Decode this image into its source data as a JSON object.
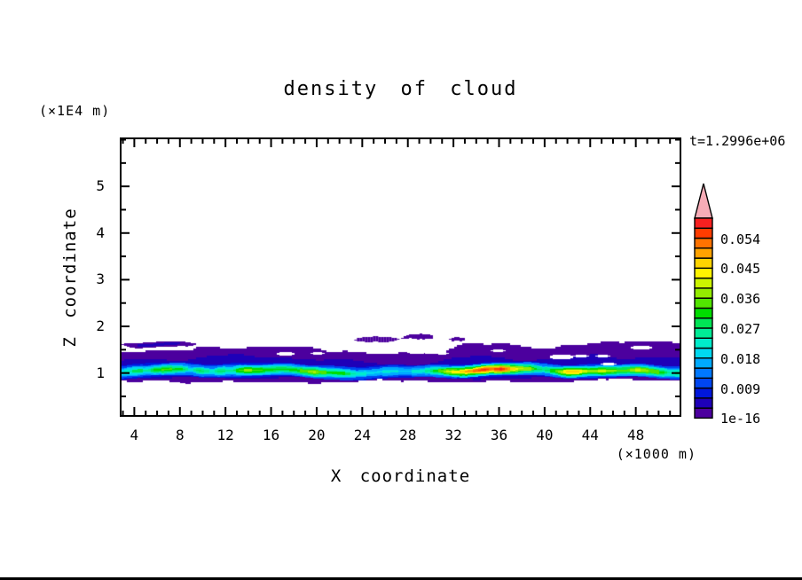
{
  "title": "density of cloud",
  "header": {
    "y_axis_units": "(×1E4 m)",
    "time_label": "t=1.2996e+06"
  },
  "axes": {
    "x": {
      "label": "X coordinate",
      "units": "(×1000 m)",
      "min": 2.88,
      "max": 51.84,
      "major_ticks": [
        4,
        8,
        12,
        16,
        20,
        24,
        28,
        32,
        36,
        40,
        44,
        48
      ],
      "minor_step": 1
    },
    "z": {
      "label": "Z coordinate",
      "units": "(×1E4 m)",
      "min": 0.1,
      "max": 6.01,
      "major_ticks": [
        1,
        2,
        3,
        4,
        5
      ],
      "minor_step": 0.5
    }
  },
  "colorbar": {
    "labels": [
      "0.054",
      "0.045",
      "0.036",
      "0.027",
      "0.018",
      "0.009",
      "1e-16"
    ],
    "label_boundaries": [
      18,
      15,
      12,
      9,
      6,
      3,
      0
    ],
    "level_step": 0.003,
    "colors_bottom_to_top": [
      "#4c009e",
      "#1e00b8",
      "#0017dc",
      "#0046f0",
      "#0078ff",
      "#00aaff",
      "#00d8f0",
      "#00eccb",
      "#00ec96",
      "#00e455",
      "#00dc00",
      "#52e400",
      "#94ec00",
      "#ccf400",
      "#fff400",
      "#ffd400",
      "#ffa200",
      "#ff7200",
      "#ff3c00",
      "#f82020"
    ],
    "overflow_color": "#f6abb6"
  },
  "chart_data": {
    "type": "filled_contour",
    "title": "density of cloud",
    "xlabel": "X coordinate (×1000 m)",
    "ylabel": "Z coordinate (×1E4 m)",
    "time_annotation": "t=1.2996e+06",
    "levels_min": 1e-16,
    "level_step": 0.003,
    "n_levels": 20,
    "xlim": [
      2.88,
      51.84
    ],
    "zlim": [
      0.1,
      6.01
    ],
    "band": {
      "top_purple": [
        [
          2.88,
          1.47
        ],
        [
          5,
          1.46
        ],
        [
          8,
          1.46
        ],
        [
          9,
          1.44
        ],
        [
          9.4,
          1.52
        ],
        [
          11,
          1.56
        ],
        [
          12.5,
          1.53
        ],
        [
          14.5,
          1.56
        ],
        [
          16.5,
          1.55
        ],
        [
          18,
          1.53
        ],
        [
          19.5,
          1.55
        ],
        [
          21,
          1.5
        ],
        [
          22.5,
          1.52
        ],
        [
          24,
          1.47
        ],
        [
          25.5,
          1.44
        ],
        [
          27,
          1.41
        ],
        [
          28.5,
          1.43
        ],
        [
          30,
          1.4
        ],
        [
          31,
          1.41
        ],
        [
          31.8,
          1.52
        ],
        [
          32.8,
          1.62
        ],
        [
          34.2,
          1.64
        ],
        [
          35.6,
          1.61
        ],
        [
          37,
          1.57
        ],
        [
          38.2,
          1.52
        ],
        [
          39.6,
          1.5
        ],
        [
          40.8,
          1.52
        ],
        [
          41.9,
          1.62
        ],
        [
          43.2,
          1.66
        ],
        [
          45,
          1.69
        ],
        [
          46.8,
          1.66
        ],
        [
          48.6,
          1.69
        ],
        [
          50.2,
          1.66
        ],
        [
          51.84,
          1.68
        ]
      ],
      "bot_purple": [
        [
          2.88,
          0.83
        ],
        [
          4.5,
          0.8
        ],
        [
          6.5,
          0.84
        ],
        [
          8.5,
          0.8
        ],
        [
          10.5,
          0.84
        ],
        [
          12.3,
          0.86
        ],
        [
          13.5,
          0.8
        ],
        [
          15.5,
          0.78
        ],
        [
          17.5,
          0.81
        ],
        [
          19.5,
          0.78
        ],
        [
          21.5,
          0.82
        ],
        [
          23.5,
          0.79
        ],
        [
          25.5,
          0.84
        ],
        [
          27.5,
          0.8
        ],
        [
          29.5,
          0.85
        ],
        [
          31.5,
          0.82
        ],
        [
          33.5,
          0.8
        ],
        [
          35.5,
          0.84
        ],
        [
          37.5,
          0.81
        ],
        [
          39.5,
          0.84
        ],
        [
          41.5,
          0.81
        ],
        [
          43.5,
          0.85
        ],
        [
          45.5,
          0.82
        ],
        [
          47.5,
          0.85
        ],
        [
          49.5,
          0.82
        ],
        [
          51.84,
          0.84
        ]
      ],
      "top_navy": [
        [
          2.88,
          1.26
        ],
        [
          4.5,
          1.29
        ],
        [
          6.5,
          1.31
        ],
        [
          8.5,
          1.27
        ],
        [
          10.5,
          1.33
        ],
        [
          12.5,
          1.36
        ],
        [
          14.5,
          1.33
        ],
        [
          16.5,
          1.37
        ],
        [
          18.5,
          1.33
        ],
        [
          20.5,
          1.3
        ],
        [
          22.5,
          1.28
        ],
        [
          24.5,
          1.24
        ],
        [
          26.5,
          1.21
        ],
        [
          28.5,
          1.19
        ],
        [
          30.5,
          1.22
        ],
        [
          32.5,
          1.3
        ],
        [
          34.5,
          1.34
        ],
        [
          36.5,
          1.3
        ],
        [
          38.5,
          1.27
        ],
        [
          40.5,
          1.3
        ],
        [
          42.5,
          1.35
        ],
        [
          44.5,
          1.38
        ],
        [
          46.5,
          1.35
        ],
        [
          48.5,
          1.38
        ],
        [
          50.5,
          1.35
        ],
        [
          51.84,
          1.36
        ]
      ],
      "bot_navy": [
        [
          2.88,
          0.92
        ],
        [
          6,
          0.9
        ],
        [
          10,
          0.92
        ],
        [
          14,
          0.89
        ],
        [
          18,
          0.91
        ],
        [
          22,
          0.89
        ],
        [
          26,
          0.92
        ],
        [
          30,
          0.9
        ],
        [
          34,
          0.88
        ],
        [
          38,
          0.9
        ],
        [
          42,
          0.89
        ],
        [
          46,
          0.92
        ],
        [
          50,
          0.9
        ],
        [
          51.84,
          0.91
        ]
      ],
      "core_center": [
        [
          2.88,
          1.03
        ],
        [
          6,
          1.05
        ],
        [
          10,
          1.04
        ],
        [
          14,
          1.06
        ],
        [
          18,
          1.05
        ],
        [
          22,
          1.03
        ],
        [
          26,
          1.02
        ],
        [
          30,
          1.04
        ],
        [
          34,
          1.05
        ],
        [
          38,
          1.06
        ],
        [
          42,
          1.05
        ],
        [
          46,
          1.06
        ],
        [
          50,
          1.04
        ],
        [
          51.84,
          1.03
        ]
      ],
      "core_peak": [
        [
          2.88,
          0.022
        ],
        [
          3.5,
          0.026
        ],
        [
          4.5,
          0.03
        ],
        [
          5.2,
          0.024
        ],
        [
          5.8,
          0.032
        ],
        [
          7,
          0.034
        ],
        [
          8.3,
          0.03
        ],
        [
          9,
          0.022
        ],
        [
          9.8,
          0.03
        ],
        [
          10.8,
          0.022
        ],
        [
          11.5,
          0.03
        ],
        [
          12.5,
          0.024
        ],
        [
          13.2,
          0.034
        ],
        [
          14,
          0.038
        ],
        [
          14.8,
          0.034
        ],
        [
          15.8,
          0.032
        ],
        [
          16.8,
          0.03
        ],
        [
          17.9,
          0.032
        ],
        [
          19.1,
          0.034
        ],
        [
          19.8,
          0.04
        ],
        [
          20.4,
          0.034
        ],
        [
          21.5,
          0.032
        ],
        [
          22.5,
          0.03
        ],
        [
          23.7,
          0.022
        ],
        [
          25,
          0.02
        ],
        [
          26.5,
          0.022
        ],
        [
          28,
          0.02
        ],
        [
          29.5,
          0.024
        ],
        [
          30.5,
          0.032
        ],
        [
          31.6,
          0.04
        ],
        [
          32.6,
          0.046
        ],
        [
          33.5,
          0.05
        ],
        [
          34.8,
          0.058
        ],
        [
          35.4,
          0.052
        ],
        [
          36.2,
          0.058
        ],
        [
          36.9,
          0.05
        ],
        [
          37.6,
          0.042
        ],
        [
          38.8,
          0.036
        ],
        [
          39.8,
          0.026
        ],
        [
          40.8,
          0.032
        ],
        [
          41.9,
          0.046
        ],
        [
          42.7,
          0.048
        ],
        [
          43.4,
          0.04
        ],
        [
          44.2,
          0.038
        ],
        [
          45.2,
          0.04
        ],
        [
          46.2,
          0.036
        ],
        [
          47.2,
          0.034
        ],
        [
          48.2,
          0.04
        ],
        [
          49.2,
          0.036
        ],
        [
          50.2,
          0.032
        ],
        [
          51,
          0.026
        ],
        [
          51.84,
          0.028
        ]
      ]
    },
    "upper_streaks": [
      {
        "x1": 2.88,
        "x2": 9.3,
        "z": 1.62,
        "h": 0.14,
        "navy": true
      },
      {
        "x1": 23.3,
        "x2": 27.1,
        "z": 1.72,
        "h": 0.12,
        "navy": false
      },
      {
        "x1": 27.4,
        "x2": 30.2,
        "z": 1.75,
        "h": 0.11,
        "navy": false
      },
      {
        "x1": 31.6,
        "x2": 33.0,
        "z": 1.74,
        "h": 0.08,
        "navy": false
      }
    ],
    "holes": [
      [
        17.3,
        1.42,
        14,
        4
      ],
      [
        20.1,
        1.43,
        10,
        3
      ],
      [
        24.9,
        1.46,
        11,
        3
      ],
      [
        28.8,
        1.45,
        16,
        5
      ],
      [
        31.0,
        1.43,
        9,
        3
      ],
      [
        35.9,
        1.48,
        11,
        3
      ],
      [
        41.5,
        1.35,
        20,
        5
      ],
      [
        43.2,
        1.37,
        12,
        3
      ],
      [
        45.1,
        1.36,
        11,
        3
      ],
      [
        48.5,
        1.55,
        18,
        4
      ],
      [
        45.6,
        1.2,
        12,
        3
      ]
    ],
    "bottom_notches": [
      [
        4.0,
        0.76,
        14,
        4
      ],
      [
        8.0,
        0.75,
        12,
        4
      ],
      [
        12.7,
        0.75,
        16,
        5
      ],
      [
        18.5,
        0.75,
        16,
        4
      ],
      [
        27.0,
        0.76,
        14,
        4
      ],
      [
        37.2,
        0.74,
        40,
        6
      ],
      [
        42.5,
        0.74,
        18,
        5
      ],
      [
        47.0,
        0.75,
        16,
        4
      ]
    ]
  }
}
